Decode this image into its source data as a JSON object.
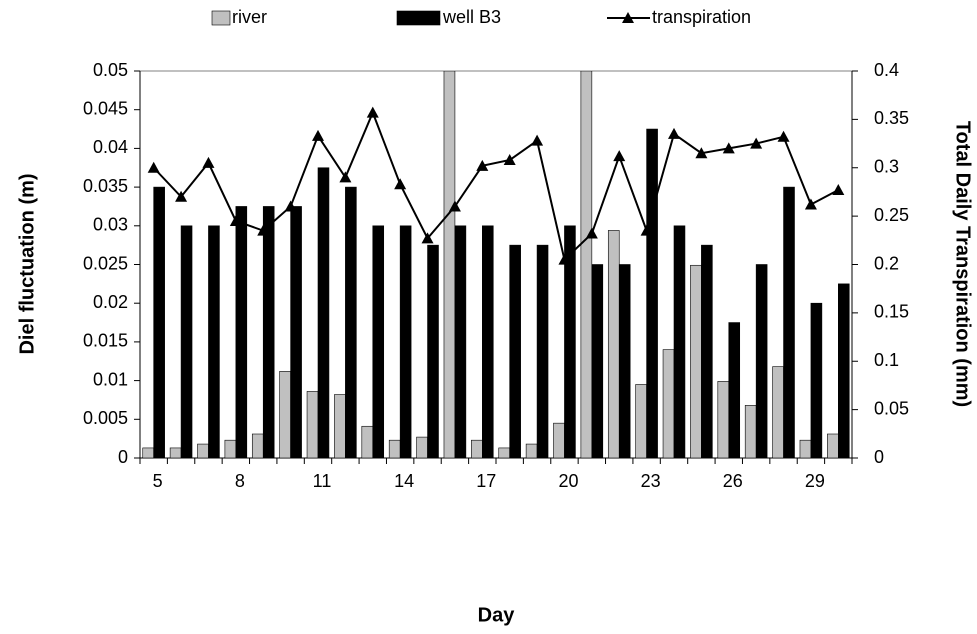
{
  "chart_data": {
    "type": "bar-line",
    "x_label": "Day",
    "y_label": "Diel fluctuation (m)",
    "y2_label": "Total Daily Transpiration (mm)",
    "categories": [
      5,
      null,
      null,
      8,
      null,
      null,
      11,
      null,
      null,
      14,
      null,
      null,
      17,
      null,
      null,
      20,
      null,
      null,
      23,
      null,
      null,
      26,
      null,
      null,
      29,
      null
    ],
    "series": [
      {
        "name": "river",
        "type": "bar",
        "color": "#c0c0c0",
        "values": [
          0.0013,
          0.0013,
          0.0018,
          0.0023,
          0.0031,
          0.0112,
          0.0086,
          0.0082,
          0.0041,
          0.0023,
          0.0027,
          0.05,
          0.0023,
          0.0013,
          0.0018,
          0.0045,
          0.05,
          0.0294,
          0.0095,
          0.014,
          0.0249,
          0.0099,
          0.0068,
          0.0118,
          0.0023,
          0.0031
        ]
      },
      {
        "name": "well B3",
        "type": "bar",
        "color": "#000000",
        "values": [
          0.035,
          0.03,
          0.03,
          0.0325,
          0.0325,
          0.0325,
          0.0375,
          0.035,
          0.03,
          0.03,
          0.0275,
          0.03,
          0.03,
          0.0275,
          0.0275,
          0.03,
          0.025,
          0.025,
          0.0425,
          0.03,
          0.0275,
          0.0175,
          0.025,
          0.035,
          0.02,
          0.0225
        ]
      },
      {
        "name": "transpiration",
        "type": "line",
        "axis": "y2",
        "color": "#000000",
        "values": [
          0.3,
          0.27,
          0.305,
          0.245,
          0.235,
          0.26,
          0.333,
          0.29,
          0.357,
          0.283,
          0.227,
          0.26,
          0.302,
          0.308,
          0.328,
          0.205,
          0.232,
          0.312,
          0.235,
          0.335,
          0.315,
          0.32,
          0.325,
          0.332,
          0.262,
          0.277
        ]
      }
    ],
    "ylim": [
      0,
      0.05
    ],
    "yticks": [
      0,
      0.005,
      0.01,
      0.015,
      0.02,
      0.025,
      0.03,
      0.035,
      0.04,
      0.045,
      0.05
    ],
    "y2lim": [
      0,
      0.4
    ],
    "y2ticks": [
      0,
      0.05,
      0.1,
      0.15,
      0.2,
      0.25,
      0.3,
      0.35,
      0.4
    ],
    "legend": "top",
    "grid": false
  }
}
